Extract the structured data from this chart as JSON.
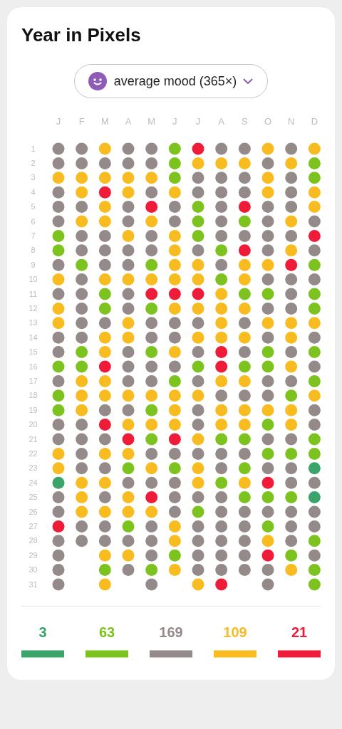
{
  "chart_data": {
    "type": "scatter",
    "title": "Year in Pixels",
    "subtitle": "average mood (365×)",
    "categories": [
      "J",
      "F",
      "M",
      "A",
      "M",
      "J",
      "J",
      "A",
      "S",
      "O",
      "N",
      "D"
    ],
    "ylim": [
      31,
      1
    ],
    "yticks": [
      1,
      2,
      3,
      4,
      5,
      6,
      7,
      8,
      9,
      10,
      11,
      12,
      13,
      14,
      15,
      16,
      17,
      18,
      19,
      20,
      21,
      22,
      23,
      24,
      25,
      26,
      27,
      28,
      29,
      30,
      31
    ],
    "marker": "circle",
    "series": [
      {
        "name": "3",
        "color": "#3ba46b",
        "values": [
          null,
          null,
          null,
          null,
          null,
          null,
          null,
          null,
          null,
          null,
          null,
          null
        ]
      },
      {
        "name": "63",
        "color": "#7cc31f",
        "values": [
          null,
          null,
          null,
          null,
          null,
          null,
          null,
          null,
          null,
          null,
          null,
          null
        ]
      },
      {
        "name": "169",
        "color": "#958a8a",
        "values": [
          null,
          null,
          null,
          null,
          null,
          null,
          null,
          null,
          null,
          null,
          null,
          null
        ]
      },
      {
        "name": "109",
        "color": "#f8bc20",
        "values": [
          null,
          null,
          null,
          null,
          null,
          null,
          null,
          null,
          null,
          null,
          null,
          null
        ]
      },
      {
        "name": "21",
        "color": "#ee1c38",
        "values": [
          null,
          null,
          null,
          null,
          null,
          null,
          null,
          null,
          null,
          null,
          null,
          null
        ]
      },
      {
        "values": [
          1,
          1,
          1,
          1,
          1,
          1,
          1,
          1,
          1,
          1,
          1,
          1
        ],
        "colors": [
          "#958a8a",
          "#958a8a",
          "#f8bc20",
          "#958a8a",
          "#958a8a",
          "#7cc31f",
          "#ee1c38",
          "#958a8a",
          "#958a8a",
          "#f8bc20",
          "#958a8a",
          "#f8bc20"
        ]
      },
      {
        "values": [
          2,
          2,
          2,
          2,
          2,
          2,
          2,
          2,
          2,
          2,
          2,
          2
        ],
        "colors": [
          "#958a8a",
          "#958a8a",
          "#958a8a",
          "#958a8a",
          "#958a8a",
          "#7cc31f",
          "#f8bc20",
          "#f8bc20",
          "#f8bc20",
          "#958a8a",
          "#f8bc20",
          "#7cc31f"
        ]
      },
      {
        "values": [
          3,
          3,
          3,
          3,
          3,
          3,
          3,
          3,
          3,
          3,
          3,
          3
        ],
        "colors": [
          "#f8bc20",
          "#f8bc20",
          "#f8bc20",
          "#f8bc20",
          "#f8bc20",
          "#7cc31f",
          "#958a8a",
          "#958a8a",
          "#958a8a",
          "#f8bc20",
          "#958a8a",
          "#7cc31f"
        ]
      },
      {
        "values": [
          4,
          4,
          4,
          4,
          4,
          4,
          4,
          4,
          4,
          4,
          4,
          4
        ],
        "colors": [
          "#958a8a",
          "#f8bc20",
          "#ee1c38",
          "#f8bc20",
          "#958a8a",
          "#f8bc20",
          "#958a8a",
          "#958a8a",
          "#958a8a",
          "#f8bc20",
          "#958a8a",
          "#f8bc20"
        ]
      },
      {
        "values": [
          5,
          5,
          5,
          5,
          5,
          5,
          5,
          5,
          5,
          5,
          5,
          5
        ],
        "colors": [
          "#958a8a",
          "#958a8a",
          "#f8bc20",
          "#958a8a",
          "#ee1c38",
          "#958a8a",
          "#7cc31f",
          "#958a8a",
          "#ee1c38",
          "#958a8a",
          "#958a8a",
          "#f8bc20"
        ]
      },
      {
        "values": [
          6,
          6,
          6,
          6,
          6,
          6,
          6,
          6,
          6,
          6,
          6,
          6
        ],
        "colors": [
          "#958a8a",
          "#f8bc20",
          "#f8bc20",
          "#958a8a",
          "#f8bc20",
          "#958a8a",
          "#7cc31f",
          "#958a8a",
          "#7cc31f",
          "#958a8a",
          "#f8bc20",
          "#958a8a"
        ]
      },
      {
        "values": [
          7,
          7,
          7,
          7,
          7,
          7,
          7,
          7,
          7,
          7,
          7,
          7
        ],
        "colors": [
          "#7cc31f",
          "#958a8a",
          "#958a8a",
          "#f8bc20",
          "#958a8a",
          "#f8bc20",
          "#7cc31f",
          "#958a8a",
          "#958a8a",
          "#958a8a",
          "#958a8a",
          "#ee1c38"
        ]
      },
      {
        "values": [
          8,
          8,
          8,
          8,
          8,
          8,
          8,
          8,
          8,
          8,
          8,
          8
        ],
        "colors": [
          "#7cc31f",
          "#958a8a",
          "#958a8a",
          "#958a8a",
          "#958a8a",
          "#f8bc20",
          "#958a8a",
          "#7cc31f",
          "#ee1c38",
          "#958a8a",
          "#f8bc20",
          "#958a8a"
        ]
      },
      {
        "values": [
          9,
          9,
          9,
          9,
          9,
          9,
          9,
          9,
          9,
          9,
          9,
          9
        ],
        "colors": [
          "#958a8a",
          "#7cc31f",
          "#958a8a",
          "#958a8a",
          "#7cc31f",
          "#f8bc20",
          "#f8bc20",
          "#958a8a",
          "#f8bc20",
          "#f8bc20",
          "#ee1c38",
          "#7cc31f"
        ]
      },
      {
        "values": [
          10,
          10,
          10,
          10,
          10,
          10,
          10,
          10,
          10,
          10,
          10,
          10
        ],
        "colors": [
          "#f8bc20",
          "#958a8a",
          "#f8bc20",
          "#f8bc20",
          "#f8bc20",
          "#f8bc20",
          "#f8bc20",
          "#7cc31f",
          "#f8bc20",
          "#958a8a",
          "#958a8a",
          "#958a8a"
        ]
      },
      {
        "values": [
          11,
          11,
          11,
          11,
          11,
          11,
          11,
          11,
          11,
          11,
          11,
          11
        ],
        "colors": [
          "#958a8a",
          "#958a8a",
          "#7cc31f",
          "#958a8a",
          "#ee1c38",
          "#ee1c38",
          "#ee1c38",
          "#f8bc20",
          "#7cc31f",
          "#7cc31f",
          "#958a8a",
          "#7cc31f"
        ]
      },
      {
        "values": [
          12,
          12,
          12,
          12,
          12,
          12,
          12,
          12,
          12,
          12,
          12,
          12
        ],
        "colors": [
          "#f8bc20",
          "#958a8a",
          "#7cc31f",
          "#958a8a",
          "#7cc31f",
          "#f8bc20",
          "#f8bc20",
          "#f8bc20",
          "#f8bc20",
          "#958a8a",
          "#958a8a",
          "#7cc31f"
        ]
      },
      {
        "values": [
          13,
          13,
          13,
          13,
          13,
          13,
          13,
          13,
          13,
          13,
          13,
          13
        ],
        "colors": [
          "#f8bc20",
          "#958a8a",
          "#958a8a",
          "#f8bc20",
          "#958a8a",
          "#958a8a",
          "#958a8a",
          "#f8bc20",
          "#958a8a",
          "#f8bc20",
          "#f8bc20",
          "#f8bc20"
        ]
      },
      {
        "values": [
          14,
          14,
          14,
          14,
          14,
          14,
          14,
          14,
          14,
          14,
          14,
          14
        ],
        "colors": [
          "#958a8a",
          "#958a8a",
          "#f8bc20",
          "#f8bc20",
          "#958a8a",
          "#958a8a",
          "#f8bc20",
          "#f8bc20",
          "#f8bc20",
          "#958a8a",
          "#f8bc20",
          "#958a8a"
        ]
      },
      {
        "values": [
          15,
          15,
          15,
          15,
          15,
          15,
          15,
          15,
          15,
          15,
          15,
          15
        ],
        "colors": [
          "#958a8a",
          "#7cc31f",
          "#f8bc20",
          "#958a8a",
          "#7cc31f",
          "#f8bc20",
          "#958a8a",
          "#ee1c38",
          "#958a8a",
          "#7cc31f",
          "#958a8a",
          "#7cc31f"
        ]
      },
      {
        "values": [
          16,
          16,
          16,
          16,
          16,
          16,
          16,
          16,
          16,
          16,
          16,
          16
        ],
        "colors": [
          "#7cc31f",
          "#7cc31f",
          "#ee1c38",
          "#958a8a",
          "#958a8a",
          "#958a8a",
          "#7cc31f",
          "#ee1c38",
          "#7cc31f",
          "#7cc31f",
          "#f8bc20",
          "#958a8a"
        ]
      },
      {
        "values": [
          17,
          17,
          17,
          17,
          17,
          17,
          17,
          17,
          17,
          17,
          17,
          17
        ],
        "colors": [
          "#958a8a",
          "#f8bc20",
          "#f8bc20",
          "#958a8a",
          "#958a8a",
          "#7cc31f",
          "#958a8a",
          "#f8bc20",
          "#f8bc20",
          "#958a8a",
          "#958a8a",
          "#7cc31f"
        ]
      },
      {
        "values": [
          18,
          18,
          18,
          18,
          18,
          18,
          18,
          18,
          18,
          18,
          18,
          18
        ],
        "colors": [
          "#7cc31f",
          "#f8bc20",
          "#f8bc20",
          "#f8bc20",
          "#f8bc20",
          "#f8bc20",
          "#f8bc20",
          "#958a8a",
          "#958a8a",
          "#958a8a",
          "#7cc31f",
          "#f8bc20"
        ]
      },
      {
        "values": [
          19,
          19,
          19,
          19,
          19,
          19,
          19,
          19,
          19,
          19,
          19,
          19
        ],
        "colors": [
          "#7cc31f",
          "#f8bc20",
          "#958a8a",
          "#958a8a",
          "#7cc31f",
          "#f8bc20",
          "#958a8a",
          "#f8bc20",
          "#f8bc20",
          "#f8bc20",
          "#f8bc20",
          "#958a8a"
        ]
      },
      {
        "values": [
          20,
          20,
          20,
          20,
          20,
          20,
          20,
          20,
          20,
          20,
          20,
          20
        ],
        "colors": [
          "#958a8a",
          "#958a8a",
          "#ee1c38",
          "#f8bc20",
          "#f8bc20",
          "#f8bc20",
          "#958a8a",
          "#f8bc20",
          "#f8bc20",
          "#7cc31f",
          "#f8bc20",
          "#958a8a"
        ]
      },
      {
        "values": [
          21,
          21,
          21,
          21,
          21,
          21,
          21,
          21,
          21,
          21,
          21,
          21
        ],
        "colors": [
          "#958a8a",
          "#958a8a",
          "#958a8a",
          "#ee1c38",
          "#7cc31f",
          "#ee1c38",
          "#f8bc20",
          "#7cc31f",
          "#7cc31f",
          "#958a8a",
          "#958a8a",
          "#7cc31f"
        ]
      },
      {
        "values": [
          22,
          22,
          22,
          22,
          22,
          22,
          22,
          22,
          22,
          22,
          22,
          22
        ],
        "colors": [
          "#f8bc20",
          "#958a8a",
          "#f8bc20",
          "#f8bc20",
          "#958a8a",
          "#958a8a",
          "#958a8a",
          "#958a8a",
          "#958a8a",
          "#7cc31f",
          "#7cc31f",
          "#7cc31f"
        ]
      },
      {
        "values": [
          23,
          23,
          23,
          23,
          23,
          23,
          23,
          23,
          23,
          23,
          23,
          23
        ],
        "colors": [
          "#f8bc20",
          "#958a8a",
          "#958a8a",
          "#7cc31f",
          "#f8bc20",
          "#7cc31f",
          "#f8bc20",
          "#958a8a",
          "#7cc31f",
          "#958a8a",
          "#958a8a",
          "#3ba46b"
        ]
      },
      {
        "values": [
          24,
          24,
          24,
          24,
          24,
          24,
          24,
          24,
          24,
          24,
          24,
          24
        ],
        "colors": [
          "#3ba46b",
          "#f8bc20",
          "#f8bc20",
          "#958a8a",
          "#958a8a",
          "#958a8a",
          "#f8bc20",
          "#7cc31f",
          "#f8bc20",
          "#ee1c38",
          "#958a8a",
          "#958a8a"
        ]
      },
      {
        "values": [
          25,
          25,
          25,
          25,
          25,
          25,
          25,
          25,
          25,
          25,
          25,
          25
        ],
        "colors": [
          "#958a8a",
          "#f8bc20",
          "#958a8a",
          "#f8bc20",
          "#ee1c38",
          "#958a8a",
          "#958a8a",
          "#958a8a",
          "#7cc31f",
          "#7cc31f",
          "#7cc31f",
          "#3ba46b"
        ]
      },
      {
        "values": [
          26,
          26,
          26,
          26,
          26,
          26,
          26,
          26,
          26,
          26,
          26,
          26
        ],
        "colors": [
          "#958a8a",
          "#f8bc20",
          "#f8bc20",
          "#f8bc20",
          "#f8bc20",
          "#958a8a",
          "#7cc31f",
          "#958a8a",
          "#958a8a",
          "#958a8a",
          "#958a8a",
          "#958a8a"
        ]
      },
      {
        "values": [
          27,
          27,
          27,
          27,
          27,
          27,
          27,
          27,
          27,
          27,
          27,
          27
        ],
        "colors": [
          "#ee1c38",
          "#958a8a",
          "#958a8a",
          "#7cc31f",
          "#958a8a",
          "#f8bc20",
          "#958a8a",
          "#958a8a",
          "#958a8a",
          "#7cc31f",
          "#958a8a",
          "#958a8a"
        ]
      },
      {
        "values": [
          28,
          28,
          28,
          28,
          28,
          28,
          28,
          28,
          28,
          28,
          28,
          28
        ],
        "colors": [
          "#958a8a",
          "#958a8a",
          "#958a8a",
          "#958a8a",
          "#958a8a",
          "#f8bc20",
          "#958a8a",
          "#958a8a",
          "#958a8a",
          "#f8bc20",
          "#958a8a",
          "#7cc31f"
        ]
      },
      {
        "values": [
          29,
          null,
          29,
          29,
          29,
          29,
          29,
          29,
          29,
          29,
          29,
          29
        ],
        "colors": [
          "#958a8a",
          null,
          "#f8bc20",
          "#f8bc20",
          "#958a8a",
          "#7cc31f",
          "#958a8a",
          "#958a8a",
          "#958a8a",
          "#ee1c38",
          "#7cc31f",
          "#958a8a"
        ]
      },
      {
        "values": [
          30,
          null,
          30,
          30,
          30,
          30,
          30,
          30,
          30,
          30,
          30,
          30
        ],
        "colors": [
          "#958a8a",
          null,
          "#7cc31f",
          "#958a8a",
          "#7cc31f",
          "#f8bc20",
          "#958a8a",
          "#958a8a",
          "#958a8a",
          "#958a8a",
          "#f8bc20",
          "#7cc31f"
        ]
      },
      {
        "values": [
          31,
          null,
          31,
          null,
          31,
          null,
          31,
          31,
          null,
          31,
          null,
          31
        ],
        "colors": [
          "#958a8a",
          null,
          "#f8bc20",
          null,
          "#958a8a",
          null,
          "#f8bc20",
          "#ee1c38",
          null,
          "#958a8a",
          null,
          "#7cc31f"
        ]
      }
    ]
  }
}
